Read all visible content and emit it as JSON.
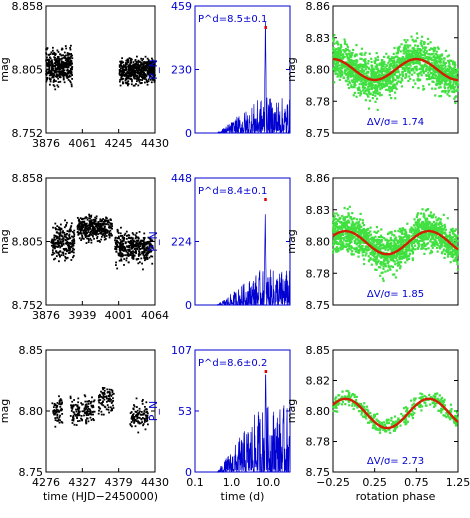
{
  "chart_data": [
    {
      "type": "scatter",
      "role": "lightcurve",
      "ylabel": "mag",
      "yticks": [
        "8.752",
        "8.805",
        "8.858"
      ],
      "xticks": [
        "3876",
        "4061",
        "4245",
        "4430"
      ],
      "xlim": [
        3876,
        4430
      ],
      "ylim": [
        8.752,
        8.858
      ],
      "color": "#000000",
      "segments": [
        {
          "x0": 3876,
          "x1": 4010,
          "mean": 8.803,
          "spread": 0.014
        },
        {
          "x0": 4250,
          "x1": 4430,
          "mean": 8.806,
          "spread": 0.01
        }
      ]
    },
    {
      "type": "line",
      "role": "periodogram",
      "ylabel": "P_N",
      "yticks": [
        "0",
        "230",
        "459"
      ],
      "ylim": [
        0,
        459
      ],
      "annotation": "P^d=8.5±0.1",
      "color": "#0000d0",
      "peak_x": 8.5,
      "peak_value": 430
    },
    {
      "type": "scatter",
      "role": "phased",
      "ylabel": "mag",
      "yticks": [
        "8.75",
        "8.78",
        "8.80",
        "8.83",
        "8.86"
      ],
      "ylim": [
        8.75,
        8.86
      ],
      "xlim": [
        -0.25,
        1.25
      ],
      "annotation": "ΔV/σ= 1.74",
      "amplitude": 0.009,
      "mean": 8.805,
      "phase_min": 0.25,
      "spread": 0.016,
      "point_color": "#40e040",
      "fit_color": "#d02000"
    },
    {
      "type": "scatter",
      "role": "lightcurve",
      "ylabel": "mag",
      "yticks": [
        "8.752",
        "8.805",
        "8.858"
      ],
      "xticks": [
        "3876",
        "3939",
        "4001",
        "4064"
      ],
      "xlim": [
        3876,
        4064
      ],
      "ylim": [
        8.752,
        8.858
      ],
      "color": "#000000",
      "segments": [
        {
          "x0": 3885,
          "x1": 3925,
          "mean": 8.806,
          "spread": 0.014
        },
        {
          "x0": 3930,
          "x1": 3990,
          "mean": 8.794,
          "spread": 0.01
        },
        {
          "x0": 3995,
          "x1": 4060,
          "mean": 8.81,
          "spread": 0.012
        }
      ]
    },
    {
      "type": "line",
      "role": "periodogram",
      "ylabel": "P_N",
      "yticks": [
        "0",
        "224",
        "448"
      ],
      "ylim": [
        0,
        448
      ],
      "annotation": "P^d=8.4±0.1",
      "color": "#0000d0",
      "peak_x": 8.4,
      "peak_value": 330
    },
    {
      "type": "scatter",
      "role": "phased",
      "ylabel": "mag",
      "yticks": [
        "8.75",
        "8.78",
        "8.80",
        "8.83",
        "8.86"
      ],
      "ylim": [
        8.75,
        8.86
      ],
      "xlim": [
        -0.25,
        1.25
      ],
      "annotation": "ΔV/σ= 1.85",
      "amplitude": 0.01,
      "mean": 8.806,
      "phase_min": 0.4,
      "spread": 0.015,
      "point_color": "#40e040",
      "fit_color": "#d02000"
    },
    {
      "type": "scatter",
      "role": "lightcurve",
      "xlabel": "time (HJD−2450000)",
      "ylabel": "mag",
      "yticks": [
        "8.75",
        "8.80",
        "8.85"
      ],
      "xticks": [
        "4276",
        "4327",
        "4379",
        "4430"
      ],
      "xlim": [
        4276,
        4430
      ],
      "ylim": [
        8.75,
        8.85
      ],
      "color": "#000000",
      "segments": [
        {
          "x0": 4285,
          "x1": 4300,
          "mean": 8.801,
          "spread": 0.012
        },
        {
          "x0": 4310,
          "x1": 4345,
          "mean": 8.8,
          "spread": 0.01
        },
        {
          "x0": 4350,
          "x1": 4372,
          "mean": 8.792,
          "spread": 0.011
        },
        {
          "x0": 4395,
          "x1": 4420,
          "mean": 8.804,
          "spread": 0.01
        }
      ]
    },
    {
      "type": "line",
      "role": "periodogram",
      "xlabel": "time (d)",
      "ylabel": "P_N",
      "yticks": [
        "0",
        "53",
        "107"
      ],
      "xticks": [
        "0.1",
        "1.0",
        "10.0"
      ],
      "ylim": [
        0,
        107
      ],
      "xlim": [
        0.1,
        40
      ],
      "xscale": "log",
      "annotation": "P^d=8.6±0.2",
      "color": "#0000d0",
      "peak_x": 8.6,
      "peak_value": 95
    },
    {
      "type": "scatter",
      "role": "phased",
      "xlabel": "rotation phase",
      "ylabel": "mag",
      "yticks": [
        "8.75",
        "8.78",
        "8.80",
        "8.82",
        "8.85"
      ],
      "xticks": [
        "−0.25",
        "0.25",
        "0.75",
        "1.25"
      ],
      "ylim": [
        8.75,
        8.85
      ],
      "xlim": [
        -0.25,
        1.25
      ],
      "annotation": "ΔV/σ= 2.73",
      "amplitude": 0.012,
      "mean": 8.802,
      "phase_min": 0.4,
      "spread": 0.007,
      "point_color": "#40e040",
      "fit_color": "#d02000"
    }
  ]
}
